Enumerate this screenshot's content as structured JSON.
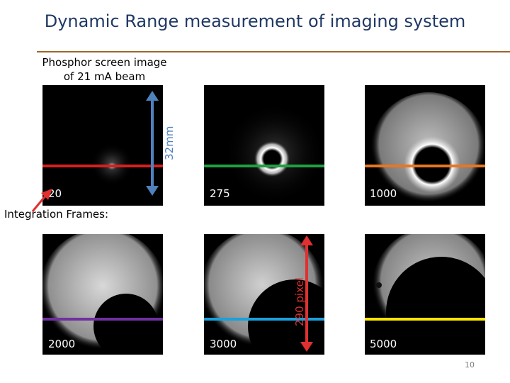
{
  "slide": {
    "title": "Dynamic Range measurement of imaging system",
    "caption_line1": "Phosphor screen image",
    "caption_line2": "of 21 mA beam",
    "section_label": "Integration Frames:",
    "page_number": "10",
    "dim_label_1": "32mm",
    "dim_label_2": "290 pixel"
  },
  "frames": [
    {
      "label": "20",
      "line_color": "#d62020"
    },
    {
      "label": "275",
      "line_color": "#20a040"
    },
    {
      "label": "1000",
      "line_color": "#e87722"
    },
    {
      "label": "2000",
      "line_color": "#7030a0"
    },
    {
      "label": "3000",
      "line_color": "#1aa0dc"
    },
    {
      "label": "5000",
      "line_color": "#ffe600"
    }
  ],
  "colors": {
    "title": "#1f3864",
    "rule": "#a0642a",
    "arrow_32mm": "#4f81bd",
    "arrow_290": "#e03030",
    "pointer_arrow": "#e03030"
  }
}
